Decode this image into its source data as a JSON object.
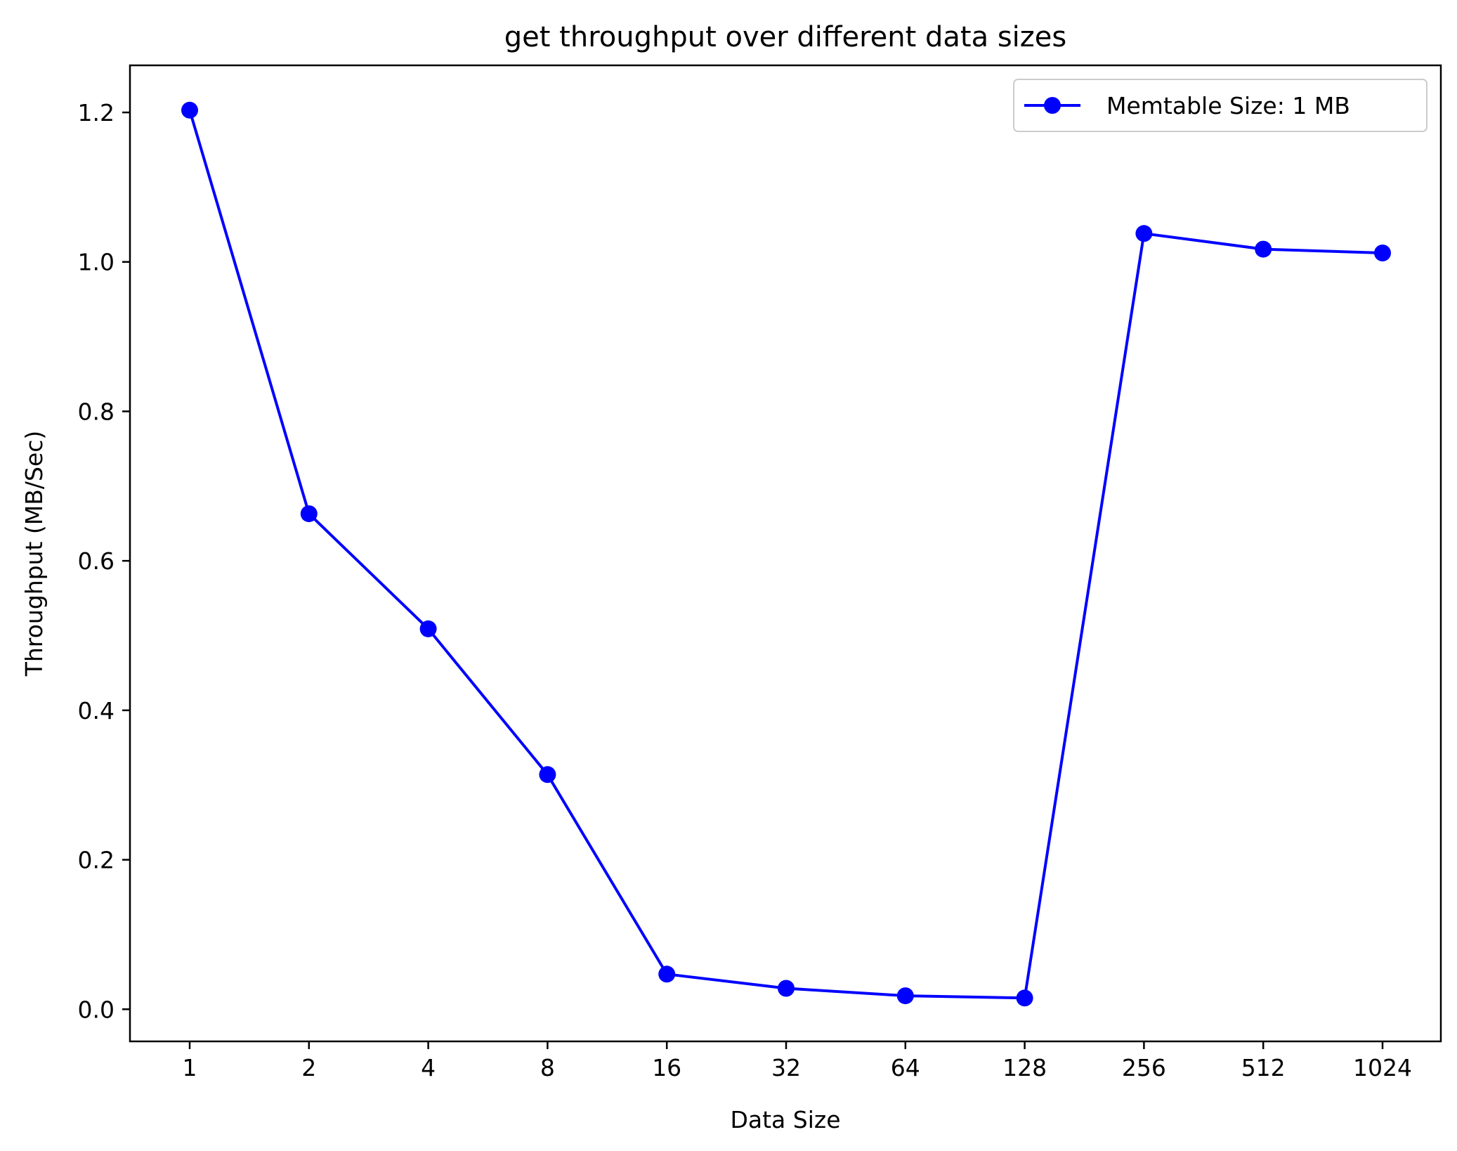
{
  "chart_data": {
    "type": "line",
    "title": "get throughput over different data sizes",
    "xlabel": "Data Size",
    "ylabel": "Throughput (MB/Sec)",
    "categories": [
      "1",
      "2",
      "4",
      "8",
      "16",
      "32",
      "64",
      "128",
      "256",
      "512",
      "1024"
    ],
    "series": [
      {
        "name": "Memtable Size: 1 MB",
        "values": [
          1.203,
          0.663,
          0.509,
          0.314,
          0.047,
          0.028,
          0.018,
          0.015,
          1.038,
          1.017,
          1.012
        ],
        "color": "#0000ff",
        "marker": "circle"
      }
    ],
    "ylim": [
      -0.043,
      1.263
    ],
    "yticks": [
      "0.0",
      "0.2",
      "0.4",
      "0.6",
      "0.8",
      "1.0",
      "1.2"
    ],
    "ytick_values": [
      0.0,
      0.2,
      0.4,
      0.6,
      0.8,
      1.0,
      1.2
    ],
    "grid": false,
    "legend_position": "upper right"
  }
}
